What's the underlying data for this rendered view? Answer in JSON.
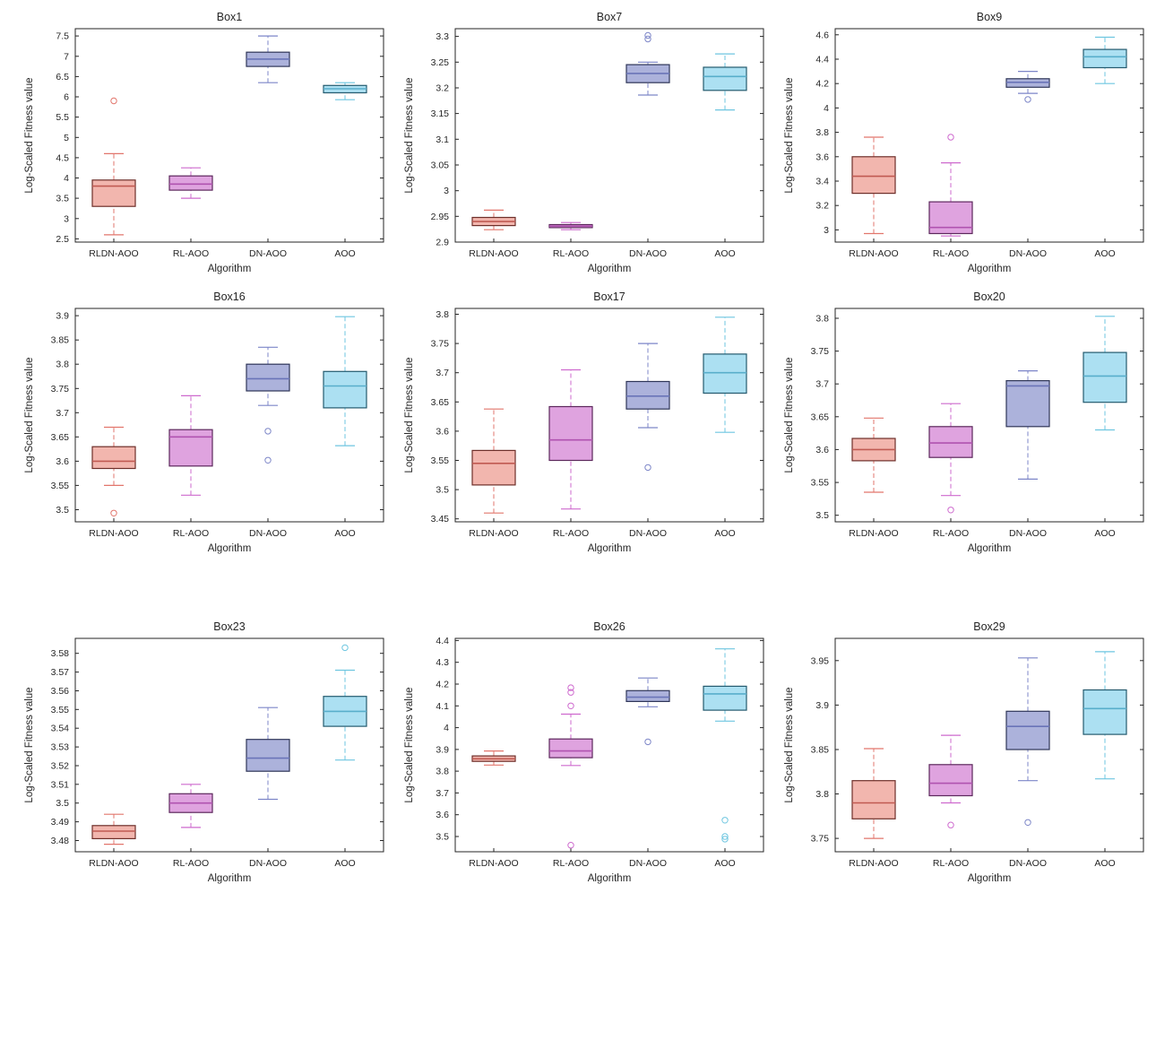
{
  "figure": {
    "background": "#ffffff"
  },
  "chart_data": {
    "type": "box",
    "xlabel": "Algorithm",
    "ylabel": "Log-Scaled Fitness value",
    "categories": [
      "RLDN-AOO",
      "RL-AOO",
      "DN-AOO",
      "AOO"
    ],
    "legend": "none",
    "grid": false,
    "palette": [
      {
        "label": "RLDN-AOO",
        "fill": "#F2B6AE",
        "edge": "#6E2F2A",
        "median": "#C05A52",
        "whisker": "#E2766C"
      },
      {
        "label": "RL-AOO",
        "fill": "#DFA3DF",
        "edge": "#5C275C",
        "median": "#B053B0",
        "whisker": "#CE6ACE"
      },
      {
        "label": "DN-AOO",
        "fill": "#ACB2DB",
        "edge": "#2F3658",
        "median": "#6A74B8",
        "whisker": "#7D86C8"
      },
      {
        "label": "AOO",
        "fill": "#ACE0F2",
        "edge": "#245A6E",
        "median": "#58AECB",
        "whisker": "#6EC6E0"
      }
    ],
    "subplots": [
      {
        "title": "Box1",
        "ylim": [
          2.42,
          7.68
        ],
        "yticks": [
          2.5,
          3,
          3.5,
          4,
          4.5,
          5,
          5.5,
          6,
          6.5,
          7,
          7.5
        ],
        "boxes": [
          {
            "whislo": 2.6,
            "q1": 3.3,
            "med": 3.8,
            "q3": 3.95,
            "whishi": 4.6,
            "outliers": [
              5.9
            ]
          },
          {
            "whislo": 3.5,
            "q1": 3.7,
            "med": 3.85,
            "q3": 4.05,
            "whishi": 4.25,
            "outliers": []
          },
          {
            "whislo": 6.35,
            "q1": 6.75,
            "med": 6.93,
            "q3": 7.1,
            "whishi": 7.5,
            "outliers": []
          },
          {
            "whislo": 5.93,
            "q1": 6.1,
            "med": 6.2,
            "q3": 6.28,
            "whishi": 6.35,
            "outliers": []
          }
        ]
      },
      {
        "title": "Box7",
        "ylim": [
          2.9,
          3.315
        ],
        "yticks": [
          2.9,
          2.95,
          3,
          3.05,
          3.1,
          3.15,
          3.2,
          3.25,
          3.3
        ],
        "boxes": [
          {
            "whislo": 2.924,
            "q1": 2.932,
            "med": 2.94,
            "q3": 2.948,
            "whishi": 2.962,
            "outliers": []
          },
          {
            "whislo": 2.924,
            "q1": 2.928,
            "med": 2.931,
            "q3": 2.934,
            "whishi": 2.938,
            "outliers": []
          },
          {
            "whislo": 3.186,
            "q1": 3.21,
            "med": 3.228,
            "q3": 3.245,
            "whishi": 3.25,
            "outliers": [
              3.295,
              3.302
            ]
          },
          {
            "whislo": 3.157,
            "q1": 3.195,
            "med": 3.222,
            "q3": 3.24,
            "whishi": 3.266,
            "outliers": []
          }
        ]
      },
      {
        "title": "Box9",
        "ylim": [
          2.9,
          4.65
        ],
        "yticks": [
          3,
          3.2,
          3.4,
          3.6,
          3.8,
          4,
          4.2,
          4.4,
          4.6
        ],
        "boxes": [
          {
            "whislo": 2.97,
            "q1": 3.3,
            "med": 3.44,
            "q3": 3.6,
            "whishi": 3.76,
            "outliers": []
          },
          {
            "whislo": 2.95,
            "q1": 2.97,
            "med": 3.02,
            "q3": 3.23,
            "whishi": 3.55,
            "outliers": [
              3.76
            ]
          },
          {
            "whislo": 4.12,
            "q1": 4.17,
            "med": 4.21,
            "q3": 4.24,
            "whishi": 4.3,
            "outliers": [
              4.07
            ]
          },
          {
            "whislo": 4.2,
            "q1": 4.33,
            "med": 4.42,
            "q3": 4.48,
            "whishi": 4.58,
            "outliers": []
          }
        ]
      },
      {
        "title": "Box16",
        "ylim": [
          3.475,
          3.915
        ],
        "yticks": [
          3.5,
          3.55,
          3.6,
          3.65,
          3.7,
          3.75,
          3.8,
          3.85,
          3.9
        ],
        "boxes": [
          {
            "whislo": 3.55,
            "q1": 3.585,
            "med": 3.6,
            "q3": 3.63,
            "whishi": 3.67,
            "outliers": [
              3.493
            ]
          },
          {
            "whislo": 3.53,
            "q1": 3.59,
            "med": 3.65,
            "q3": 3.665,
            "whishi": 3.735,
            "outliers": []
          },
          {
            "whislo": 3.715,
            "q1": 3.745,
            "med": 3.77,
            "q3": 3.8,
            "whishi": 3.835,
            "outliers": [
              3.662,
              3.602
            ]
          },
          {
            "whislo": 3.632,
            "q1": 3.71,
            "med": 3.755,
            "q3": 3.785,
            "whishi": 3.898,
            "outliers": []
          }
        ]
      },
      {
        "title": "Box17",
        "ylim": [
          3.445,
          3.81
        ],
        "yticks": [
          3.45,
          3.5,
          3.55,
          3.6,
          3.65,
          3.7,
          3.75,
          3.8
        ],
        "boxes": [
          {
            "whislo": 3.46,
            "q1": 3.508,
            "med": 3.545,
            "q3": 3.567,
            "whishi": 3.638,
            "outliers": []
          },
          {
            "whislo": 3.467,
            "q1": 3.55,
            "med": 3.585,
            "q3": 3.642,
            "whishi": 3.705,
            "outliers": []
          },
          {
            "whislo": 3.606,
            "q1": 3.638,
            "med": 3.66,
            "q3": 3.685,
            "whishi": 3.75,
            "outliers": [
              3.538
            ]
          },
          {
            "whislo": 3.598,
            "q1": 3.665,
            "med": 3.7,
            "q3": 3.732,
            "whishi": 3.795,
            "outliers": []
          }
        ]
      },
      {
        "title": "Box20",
        "ylim": [
          3.49,
          3.815
        ],
        "yticks": [
          3.5,
          3.55,
          3.6,
          3.65,
          3.7,
          3.75,
          3.8
        ],
        "boxes": [
          {
            "whislo": 3.535,
            "q1": 3.583,
            "med": 3.6,
            "q3": 3.617,
            "whishi": 3.648,
            "outliers": []
          },
          {
            "whislo": 3.53,
            "q1": 3.588,
            "med": 3.61,
            "q3": 3.635,
            "whishi": 3.67,
            "outliers": [
              3.508
            ]
          },
          {
            "whislo": 3.555,
            "q1": 3.635,
            "med": 3.697,
            "q3": 3.705,
            "whishi": 3.72,
            "outliers": []
          },
          {
            "whislo": 3.63,
            "q1": 3.672,
            "med": 3.712,
            "q3": 3.748,
            "whishi": 3.803,
            "outliers": []
          }
        ]
      },
      {
        "title": "Box23",
        "ylim": [
          3.474,
          3.588
        ],
        "yticks": [
          3.48,
          3.49,
          3.5,
          3.51,
          3.52,
          3.53,
          3.54,
          3.55,
          3.56,
          3.57,
          3.58
        ],
        "boxes": [
          {
            "whislo": 3.478,
            "q1": 3.481,
            "med": 3.485,
            "q3": 3.488,
            "whishi": 3.494,
            "outliers": []
          },
          {
            "whislo": 3.487,
            "q1": 3.495,
            "med": 3.5,
            "q3": 3.505,
            "whishi": 3.51,
            "outliers": []
          },
          {
            "whislo": 3.502,
            "q1": 3.517,
            "med": 3.524,
            "q3": 3.534,
            "whishi": 3.551,
            "outliers": []
          },
          {
            "whislo": 3.523,
            "q1": 3.541,
            "med": 3.549,
            "q3": 3.557,
            "whishi": 3.571,
            "outliers": [
              3.583
            ]
          }
        ]
      },
      {
        "title": "Box26",
        "ylim": [
          3.43,
          4.41
        ],
        "yticks": [
          3.5,
          3.6,
          3.7,
          3.8,
          3.9,
          4,
          4.1,
          4.2,
          4.3,
          4.4
        ],
        "boxes": [
          {
            "whislo": 3.828,
            "q1": 3.845,
            "med": 3.857,
            "q3": 3.87,
            "whishi": 3.893,
            "outliers": []
          },
          {
            "whislo": 3.826,
            "q1": 3.862,
            "med": 3.893,
            "q3": 3.948,
            "whishi": 4.062,
            "outliers": [
              4.183,
              4.162,
              4.1,
              3.46
            ]
          },
          {
            "whislo": 4.096,
            "q1": 4.12,
            "med": 4.14,
            "q3": 4.17,
            "whishi": 4.228,
            "outliers": [
              3.935
            ]
          },
          {
            "whislo": 4.03,
            "q1": 4.08,
            "med": 4.155,
            "q3": 4.19,
            "whishi": 4.362,
            "outliers": [
              3.575,
              3.5,
              3.488
            ]
          }
        ]
      },
      {
        "title": "Box29",
        "ylim": [
          3.735,
          3.975
        ],
        "yticks": [
          3.75,
          3.8,
          3.85,
          3.9,
          3.95
        ],
        "boxes": [
          {
            "whislo": 3.75,
            "q1": 3.772,
            "med": 3.79,
            "q3": 3.815,
            "whishi": 3.851,
            "outliers": []
          },
          {
            "whislo": 3.79,
            "q1": 3.798,
            "med": 3.812,
            "q3": 3.833,
            "whishi": 3.866,
            "outliers": [
              3.765
            ]
          },
          {
            "whislo": 3.815,
            "q1": 3.85,
            "med": 3.876,
            "q3": 3.893,
            "whishi": 3.953,
            "outliers": [
              3.768
            ]
          },
          {
            "whislo": 3.817,
            "q1": 3.867,
            "med": 3.896,
            "q3": 3.917,
            "whishi": 3.96,
            "outliers": []
          }
        ]
      }
    ]
  }
}
